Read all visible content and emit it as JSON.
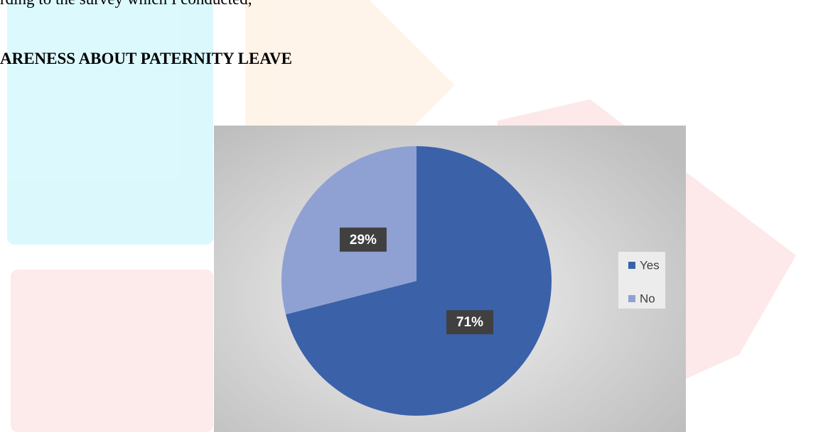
{
  "body_text": "rding to the survey which I conducted,",
  "heading": "ARENESS ABOUT PATERNITY LEAVE",
  "chart_data": {
    "type": "pie",
    "categories": [
      "Yes",
      "No"
    ],
    "values": [
      71,
      29
    ],
    "value_labels": [
      "71%",
      "29%"
    ],
    "colors": [
      "#3b61a9",
      "#8fa1d3"
    ],
    "legend": "right"
  }
}
